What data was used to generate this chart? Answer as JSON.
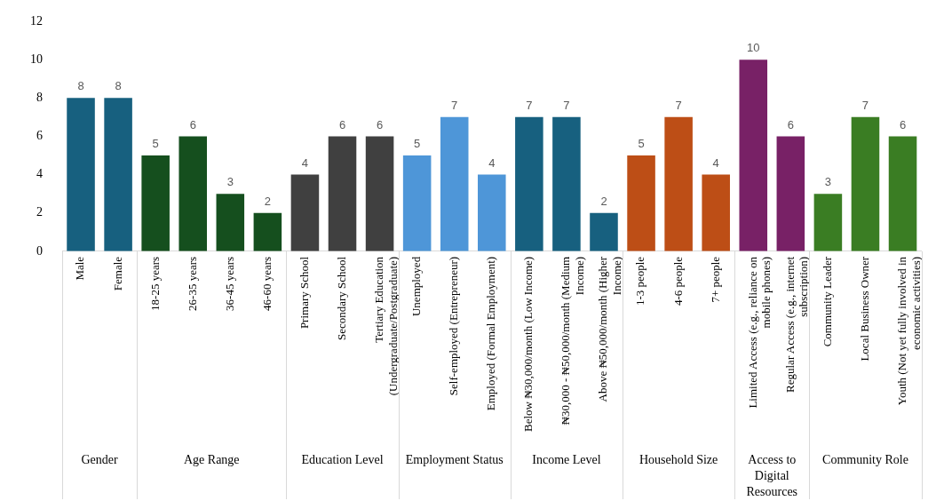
{
  "chart_data": {
    "type": "bar",
    "categories": [
      "Male",
      "Female",
      "18-25 years",
      "26-35 years",
      "36-45 years",
      "46-60 years",
      "Primary School",
      "Secondary School",
      "Tertiary Education (Undergraduate/Postgraduate)",
      "Unemployed",
      "Self-employed (Entrepreneur)",
      "Employed (Formal Employment)",
      "Below ₦30,000/month (Low Income)",
      "₦30,000 - ₦50,000/month (Medium Income)",
      "Above ₦50,000/month (Higher Income)",
      "1-3 people",
      "4-6 people",
      "7+ people",
      "Limited Access (e.g., reliance on mobile phones)",
      "Regular Access (e.g., internet subscription)",
      "Community Leader",
      "Local Business Owner",
      "Youth (Not yet fully involved in economic activities)"
    ],
    "values": [
      8,
      8,
      5,
      6,
      3,
      2,
      4,
      6,
      6,
      5,
      7,
      4,
      7,
      7,
      2,
      5,
      7,
      4,
      10,
      6,
      3,
      7,
      6
    ],
    "colors": [
      "#17607f",
      "#17607f",
      "#154f1e",
      "#154f1e",
      "#154f1e",
      "#154f1e",
      "#404040",
      "#404040",
      "#404040",
      "#4e96d8",
      "#4e96d8",
      "#4e96d8",
      "#17607f",
      "#17607f",
      "#17607f",
      "#bd4e16",
      "#bd4e16",
      "#bd4e16",
      "#782166",
      "#782166",
      "#3a7d23",
      "#3a7d23",
      "#3a7d23"
    ],
    "ylim": [
      0,
      12
    ],
    "yticks": [
      0,
      2,
      4,
      6,
      8,
      10,
      12
    ],
    "annotations": [
      "Gender",
      "Age Range",
      "Education Level",
      "Employment Status",
      "Income Level",
      "Household Size",
      "Access to Digital Resources",
      "Community Role"
    ],
    "data_labels": true,
    "grid": false,
    "legend": false
  }
}
